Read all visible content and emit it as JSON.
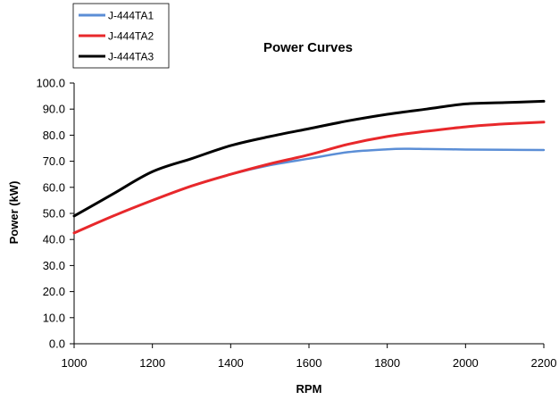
{
  "chart_data": {
    "type": "line",
    "title": "Power Curves",
    "xlabel": "RPM",
    "ylabel": "Power (kW)",
    "xlim": [
      1000,
      2200
    ],
    "ylim": [
      0,
      100
    ],
    "x_ticks": [
      "1000",
      "1200",
      "1400",
      "1600",
      "1800",
      "2000",
      "2200"
    ],
    "y_ticks": [
      "0.0",
      "10.0",
      "20.0",
      "30.0",
      "40.0",
      "50.0",
      "60.0",
      "70.0",
      "80.0",
      "90.0",
      "100.0"
    ],
    "grid": false,
    "legend_position": "top-left",
    "series": [
      {
        "name": "J-444TA1",
        "color": "#5b8ed6",
        "x": [
          1000,
          1100,
          1200,
          1300,
          1400,
          1500,
          1600,
          1700,
          1800,
          1850,
          1900,
          2000,
          2100,
          2200
        ],
        "y": [
          42.5,
          49.0,
          55.0,
          60.5,
          65.0,
          68.5,
          71.0,
          73.5,
          74.6,
          74.8,
          74.7,
          74.5,
          74.4,
          74.3
        ]
      },
      {
        "name": "J-444TA2",
        "color": "#e8282b",
        "x": [
          1000,
          1100,
          1200,
          1300,
          1400,
          1500,
          1600,
          1700,
          1800,
          1900,
          2000,
          2100,
          2200
        ],
        "y": [
          42.5,
          49.0,
          55.0,
          60.5,
          65.0,
          69.0,
          72.5,
          76.5,
          79.5,
          81.5,
          83.2,
          84.3,
          85.0
        ]
      },
      {
        "name": "J-444TA3",
        "color": "#000000",
        "x": [
          1000,
          1100,
          1200,
          1300,
          1400,
          1500,
          1600,
          1700,
          1800,
          1900,
          2000,
          2100,
          2200
        ],
        "y": [
          49.0,
          57.5,
          66.0,
          71.0,
          76.0,
          79.5,
          82.5,
          85.5,
          88.0,
          90.0,
          92.0,
          92.5,
          93.0
        ]
      }
    ]
  }
}
